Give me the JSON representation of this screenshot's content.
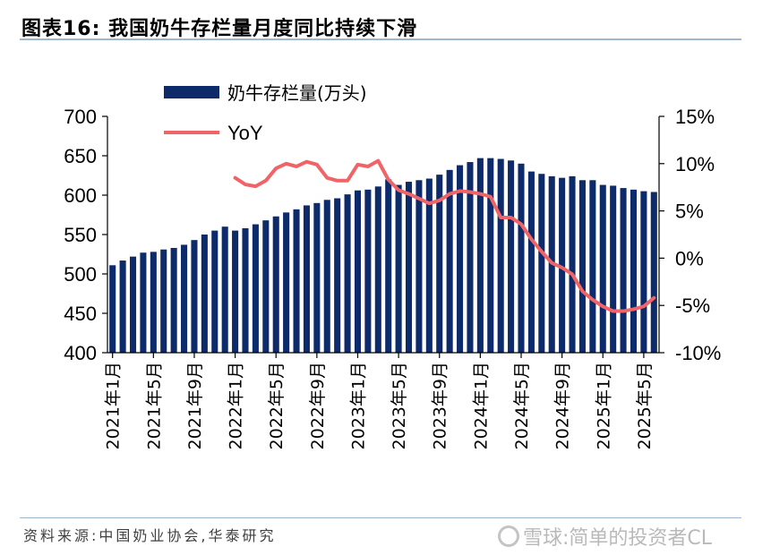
{
  "header": {
    "title": "图表16:   我国奶牛存栏量月度同比持续下滑"
  },
  "footer": {
    "source": "资料来源:中国奶业协会,华泰研究",
    "watermark": "雪球:简单的投资者CL"
  },
  "chart_data": {
    "type": "bar+line",
    "legend": [
      {
        "name": "奶牛存栏量(万头)",
        "kind": "bar",
        "color": "#0d2a6b"
      },
      {
        "name": "YoY",
        "kind": "line",
        "color": "#f06468"
      }
    ],
    "colors": {
      "bar": "#0d2a6b",
      "line": "#f06468"
    },
    "y_left": {
      "min": 400,
      "max": 700,
      "ticks": [
        "700",
        "650",
        "600",
        "550",
        "500",
        "450",
        "400"
      ]
    },
    "y_right": {
      "min": -10,
      "max": 15,
      "ticks": [
        "15%",
        "10%",
        "5%",
        "0%",
        "-5%",
        "-10%"
      ]
    },
    "x_labels": [
      "2021年1月",
      "2021年5月",
      "2021年9月",
      "2022年1月",
      "2022年5月",
      "2022年9月",
      "2023年1月",
      "2023年5月",
      "2023年9月",
      "2024年1月",
      "2024年5月",
      "2024年9月",
      "2025年1月",
      "2025年5月"
    ],
    "months": [
      "2021-01",
      "2021-02",
      "2021-03",
      "2021-04",
      "2021-05",
      "2021-06",
      "2021-07",
      "2021-08",
      "2021-09",
      "2021-10",
      "2021-11",
      "2021-12",
      "2022-01",
      "2022-02",
      "2022-03",
      "2022-04",
      "2022-05",
      "2022-06",
      "2022-07",
      "2022-08",
      "2022-09",
      "2022-10",
      "2022-11",
      "2022-12",
      "2023-01",
      "2023-02",
      "2023-03",
      "2023-04",
      "2023-05",
      "2023-06",
      "2023-07",
      "2023-08",
      "2023-09",
      "2023-10",
      "2023-11",
      "2023-12",
      "2024-01",
      "2024-02",
      "2024-03",
      "2024-04",
      "2024-05",
      "2024-06",
      "2024-07",
      "2024-08",
      "2024-09",
      "2024-10",
      "2024-11",
      "2024-12",
      "2025-01",
      "2025-02",
      "2025-03",
      "2025-04",
      "2025-05",
      "2025-06"
    ],
    "series": [
      {
        "name": "奶牛存栏量(万头)",
        "values": [
          511,
          517,
          522,
          527,
          528,
          531,
          533,
          537,
          543,
          550,
          555,
          560,
          555,
          558,
          563,
          568,
          573,
          578,
          582,
          587,
          590,
          594,
          596,
          601,
          606,
          607,
          611,
          620,
          613,
          617,
          619,
          621,
          626,
          632,
          638,
          642,
          647,
          647,
          646,
          644,
          640,
          630,
          627,
          624,
          622,
          624,
          619,
          619,
          613,
          612,
          609,
          607,
          605,
          604
        ]
      },
      {
        "name": "YoY",
        "values": [
          null,
          null,
          null,
          null,
          null,
          null,
          null,
          null,
          null,
          null,
          null,
          null,
          8.5,
          7.8,
          7.6,
          8.2,
          9.5,
          10.0,
          9.7,
          10.2,
          9.9,
          8.5,
          8.2,
          8.2,
          9.9,
          9.7,
          10.3,
          8.3,
          7.2,
          6.8,
          6.3,
          5.8,
          6.1,
          6.8,
          7.1,
          7.0,
          6.8,
          6.5,
          4.3,
          4.3,
          3.6,
          2.0,
          0.7,
          -0.5,
          -1.0,
          -1.7,
          -3.5,
          -4.4,
          -5.1,
          -5.6,
          -5.6,
          -5.4,
          -5.1,
          -4.2
        ]
      }
    ]
  }
}
